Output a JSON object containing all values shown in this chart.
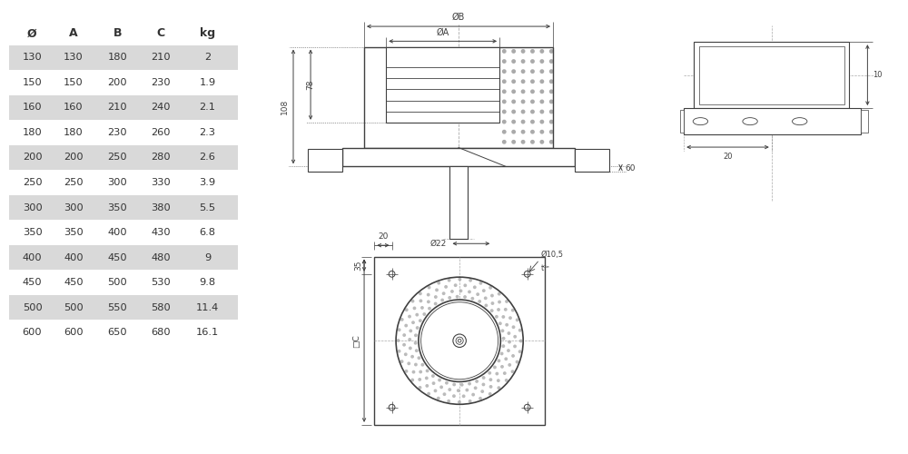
{
  "table_headers": [
    "Ø",
    "A",
    "B",
    "C",
    "kg"
  ],
  "table_data": [
    [
      130,
      130,
      180,
      210,
      2
    ],
    [
      150,
      150,
      200,
      230,
      1.9
    ],
    [
      160,
      160,
      210,
      240,
      2.1
    ],
    [
      180,
      180,
      230,
      260,
      2.3
    ],
    [
      200,
      200,
      250,
      280,
      2.6
    ],
    [
      250,
      250,
      300,
      330,
      3.9
    ],
    [
      300,
      300,
      350,
      380,
      5.5
    ],
    [
      350,
      350,
      400,
      430,
      6.8
    ],
    [
      400,
      400,
      450,
      480,
      9
    ],
    [
      450,
      450,
      500,
      530,
      9.8
    ],
    [
      500,
      500,
      550,
      580,
      11.4
    ],
    [
      600,
      600,
      650,
      680,
      16.1
    ]
  ],
  "shaded_rows": [
    0,
    2,
    4,
    6,
    8,
    10
  ],
  "bg_color": "#ffffff",
  "table_shade_color": "#d9d9d9",
  "line_color": "#404040",
  "text_color": "#333333",
  "dim_color": "#404040"
}
